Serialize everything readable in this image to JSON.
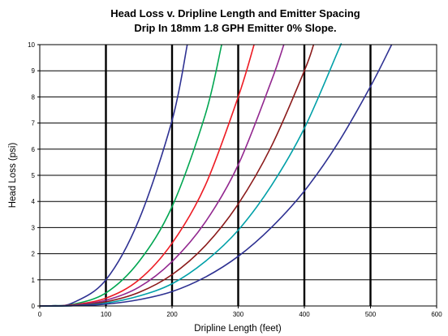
{
  "chart_data": {
    "type": "line",
    "title": "Head Loss v. Dripline Length and Emitter Spacing",
    "subtitle": "Drip In 18mm 1.8 GPH Emitter 0% Slope.",
    "xlabel": "Dripline Length (feet)",
    "ylabel": "Head Loss (psi)",
    "xlim": [
      0,
      600
    ],
    "ylim": [
      0,
      10
    ],
    "x_ticks": [
      0,
      100,
      200,
      300,
      400,
      500,
      600
    ],
    "y_ticks": [
      0,
      1,
      2,
      3,
      4,
      5,
      6,
      7,
      8,
      9,
      10
    ],
    "grid": {
      "horizontal": true,
      "vertical_major": [
        100,
        200,
        300,
        400,
        500
      ]
    },
    "legend": "none",
    "series": [
      {
        "color": "#2e3192",
        "x": [
          0,
          20,
          50,
          100,
          150,
          200,
          223
        ],
        "y": [
          0,
          0.01,
          0.12,
          1.0,
          3.3,
          7.1,
          10.0
        ]
      },
      {
        "color": "#00a651",
        "x": [
          0,
          20,
          50,
          100,
          150,
          200,
          250,
          275
        ],
        "y": [
          0,
          0.01,
          0.06,
          0.5,
          1.7,
          3.8,
          7.3,
          10.0
        ]
      },
      {
        "color": "#ed1c24",
        "x": [
          0,
          20,
          50,
          100,
          150,
          200,
          250,
          300,
          324
        ],
        "y": [
          0,
          0.0,
          0.04,
          0.3,
          1.0,
          2.4,
          4.6,
          8.0,
          10.0
        ]
      },
      {
        "color": "#92278f",
        "x": [
          0,
          50,
          100,
          150,
          200,
          250,
          300,
          350,
          369
        ],
        "y": [
          0,
          0.03,
          0.22,
          0.72,
          1.7,
          3.2,
          5.4,
          8.6,
          10.0
        ]
      },
      {
        "color": "#8b1a1a",
        "x": [
          0,
          50,
          100,
          150,
          200,
          250,
          300,
          350,
          400,
          414
        ],
        "y": [
          0,
          0.02,
          0.16,
          0.52,
          1.2,
          2.3,
          3.9,
          6.1,
          9.0,
          10.0
        ]
      },
      {
        "color": "#00a0a8",
        "x": [
          0,
          50,
          100,
          150,
          200,
          250,
          300,
          350,
          400,
          450,
          455
        ],
        "y": [
          0,
          0.01,
          0.11,
          0.38,
          0.85,
          1.7,
          2.9,
          4.6,
          6.8,
          9.7,
          10.0
        ]
      },
      {
        "color": "#2e3192",
        "x": [
          0,
          50,
          100,
          150,
          200,
          250,
          300,
          350,
          400,
          450,
          500,
          532
        ],
        "y": [
          0,
          0.01,
          0.07,
          0.24,
          0.55,
          1.1,
          1.9,
          3.0,
          4.4,
          6.2,
          8.4,
          10.0
        ]
      }
    ]
  }
}
